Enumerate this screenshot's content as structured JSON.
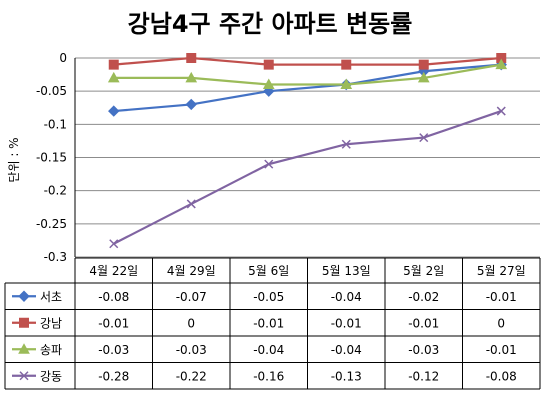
{
  "chart_data": {
    "type": "line",
    "title": "강남4구 주간 아파트 변동률",
    "ylabel": "단위 : %",
    "ylim": [
      -0.3,
      0
    ],
    "yticks": [
      "0",
      "-0.05",
      "-0.1",
      "-0.15",
      "-0.2",
      "-0.25",
      "-0.3"
    ],
    "grid": true,
    "legend": "table below chart",
    "categories": [
      "4월 22일",
      "4월 29일",
      "5월 6일",
      "5월 13일",
      "5월 2일",
      "5월 27일"
    ],
    "series": [
      {
        "name": "서초",
        "color": "#4472c4",
        "marker": "diamond",
        "values": [
          -0.08,
          -0.07,
          -0.05,
          -0.04,
          -0.02,
          -0.01
        ]
      },
      {
        "name": "강남",
        "color": "#c0504d",
        "marker": "square",
        "values": [
          -0.01,
          0,
          -0.01,
          -0.01,
          -0.01,
          0
        ]
      },
      {
        "name": "송파",
        "color": "#9bbb59",
        "marker": "triangle",
        "values": [
          -0.03,
          -0.03,
          -0.04,
          -0.04,
          -0.03,
          -0.01
        ]
      },
      {
        "name": "강동",
        "color": "#8064a2",
        "marker": "x",
        "values": [
          -0.28,
          -0.22,
          -0.16,
          -0.13,
          -0.12,
          -0.08
        ]
      }
    ],
    "table": [
      [
        "-0.08",
        "-0.07",
        "-0.05",
        "-0.04",
        "-0.02",
        "-0.01"
      ],
      [
        "-0.01",
        "0",
        "-0.01",
        "-0.01",
        "-0.01",
        "0"
      ],
      [
        "-0.03",
        "-0.03",
        "-0.04",
        "-0.04",
        "-0.03",
        "-0.01"
      ],
      [
        "-0.28",
        "-0.22",
        "-0.16",
        "-0.13",
        "-0.12",
        "-0.08"
      ]
    ]
  }
}
